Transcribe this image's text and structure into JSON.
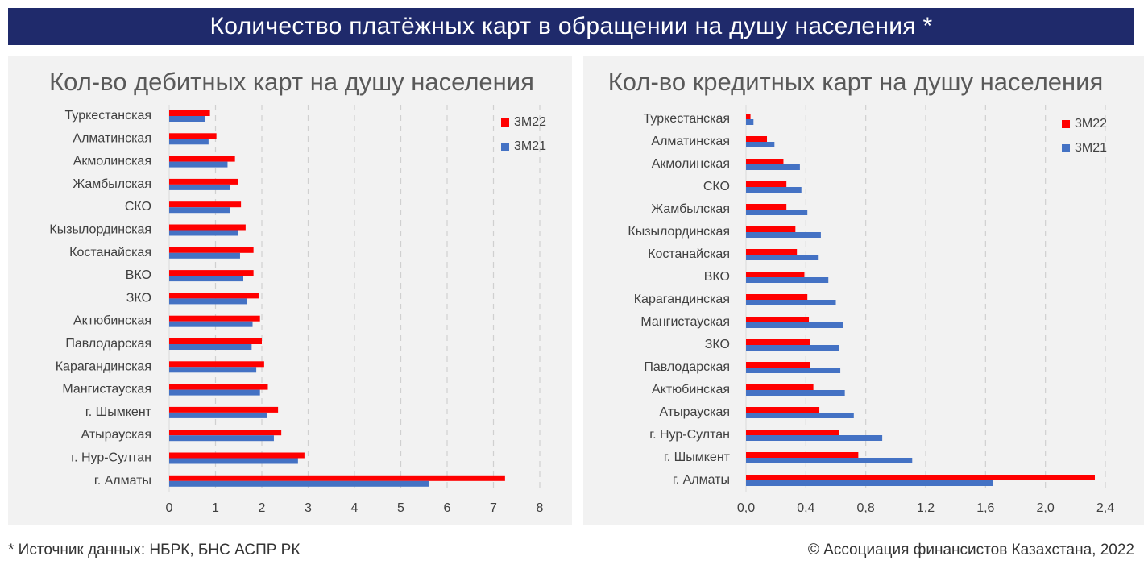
{
  "banner": {
    "title": "Количество платёжных карт в обращении на душу населения *"
  },
  "footer": {
    "source": "* Источник данных: НБРК, БНС АСПР РК",
    "copyright": "© Ассоциация финансистов Казахстана, 2022"
  },
  "colors": {
    "series_3m22": "#ff0000",
    "series_3m21": "#4472c4",
    "banner_bg": "#1f2a6b",
    "panel_bg": "#f2f2f2",
    "text": "#595959"
  },
  "chart_data": [
    {
      "type": "bar",
      "orientation": "horizontal",
      "title": "Кол-во дебитных карт на душу населения",
      "categories": [
        "Туркестанская",
        "Алматинская",
        "Акмолинская",
        "Жамбылская",
        "СКО",
        "Кызылординская",
        "Костанайская",
        "ВКО",
        "ЗКО",
        "Актюбинская",
        "Павлодарская",
        "Карагандинская",
        "Мангистауская",
        "г. Шымкент",
        "Атырауская",
        "г. Нур-Султан",
        "г. Алматы"
      ],
      "series": [
        {
          "name": "3М22",
          "color": "#ff0000",
          "values": [
            0.88,
            1.02,
            1.42,
            1.48,
            1.55,
            1.65,
            1.82,
            1.82,
            1.93,
            1.96,
            2.0,
            2.05,
            2.13,
            2.35,
            2.42,
            2.92,
            7.25
          ]
        },
        {
          "name": "3М21",
          "color": "#4472c4",
          "values": [
            0.78,
            0.85,
            1.26,
            1.32,
            1.32,
            1.48,
            1.53,
            1.6,
            1.68,
            1.8,
            1.78,
            1.88,
            1.96,
            2.12,
            2.26,
            2.78,
            5.6
          ]
        }
      ],
      "xlim": [
        0,
        8
      ],
      "xticks": [
        0,
        1,
        2,
        3,
        4,
        5,
        6,
        7,
        8
      ],
      "tick_labels": [
        "0",
        "1",
        "2",
        "3",
        "4",
        "5",
        "6",
        "7",
        "8"
      ],
      "grid": "vertical dashed",
      "legend": "top-right"
    },
    {
      "type": "bar",
      "orientation": "horizontal",
      "title": "Кол-во кредитных карт на душу населения",
      "categories": [
        "Туркестанская",
        "Алматинская",
        "Акмолинская",
        "СКО",
        "Жамбылская",
        "Кызылординская",
        "Костанайская",
        "ВКО",
        "Карагандинская",
        "Мангистауская",
        "ЗКО",
        "Павлодарская",
        "Актюбинская",
        "Атырауская",
        "г. Нур-Султан",
        "г. Шымкент",
        "г. Алматы"
      ],
      "series": [
        {
          "name": "3М22",
          "color": "#ff0000",
          "values": [
            0.03,
            0.14,
            0.25,
            0.27,
            0.27,
            0.33,
            0.34,
            0.39,
            0.41,
            0.42,
            0.43,
            0.43,
            0.45,
            0.49,
            0.62,
            0.75,
            2.33
          ]
        },
        {
          "name": "3М21",
          "color": "#4472c4",
          "values": [
            0.05,
            0.19,
            0.36,
            0.37,
            0.41,
            0.5,
            0.48,
            0.55,
            0.6,
            0.65,
            0.62,
            0.63,
            0.66,
            0.72,
            0.91,
            1.11,
            1.65
          ]
        }
      ],
      "xlim": [
        0,
        2.4
      ],
      "xticks": [
        0,
        0.4,
        0.8,
        1.2,
        1.6,
        2.0,
        2.4
      ],
      "tick_labels": [
        "0,0",
        "0,4",
        "0,8",
        "1,2",
        "1,6",
        "2,0",
        "2,4"
      ],
      "grid": "vertical dashed",
      "legend": "top-right"
    }
  ]
}
